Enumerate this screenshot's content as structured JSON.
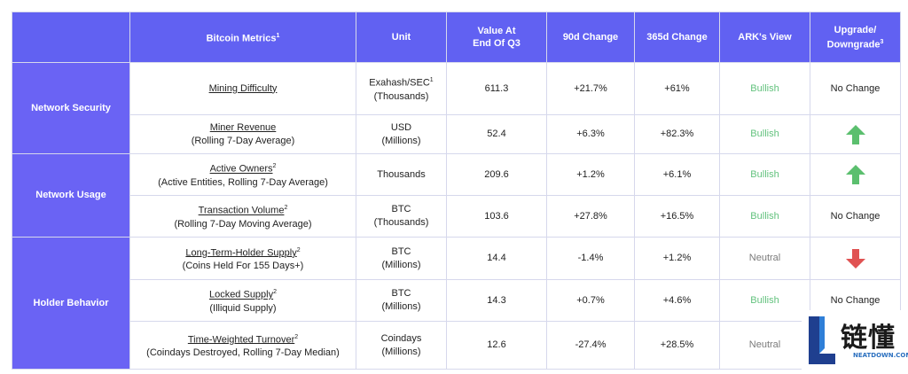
{
  "headers": {
    "group": "",
    "metric": "Bitcoin Metrics",
    "metric_sup": "1",
    "unit": "Unit",
    "value_line1": "Value At",
    "value_line2": "End Of Q3",
    "change90": "90d Change",
    "change365": "365d Change",
    "view": "ARK's View",
    "upgrade_line1": "Upgrade/",
    "upgrade_line2": "Downgrade",
    "upgrade_sup": "3"
  },
  "groups": [
    "Network Security",
    "Network Usage",
    "Holder Behavior"
  ],
  "rows": [
    {
      "name": "Mining Difficulty",
      "name_sup": "",
      "sub": "",
      "unit1": "Exahash/SEC",
      "unit1_sup": "1",
      "unit2": "(Thousands)",
      "value": "611.3",
      "c90": "+21.7%",
      "c365": "+61%",
      "view": "Bullish",
      "change": "No Change",
      "change_icon": ""
    },
    {
      "name": "Miner Revenue",
      "name_sup": "",
      "sub": "(Rolling 7-Day Average)",
      "unit1": "USD",
      "unit1_sup": "",
      "unit2": "(Millions)",
      "value": "52.4",
      "c90": "+6.3%",
      "c365": "+82.3%",
      "view": "Bullish",
      "change": "",
      "change_icon": "arrow-up"
    },
    {
      "name": "Active Owners",
      "name_sup": "2",
      "sub": "(Active Entities, Rolling 7-Day Average)",
      "unit1": "Thousands",
      "unit1_sup": "",
      "unit2": "",
      "value": "209.6",
      "c90": "+1.2%",
      "c365": "+6.1%",
      "view": "Bullish",
      "change": "",
      "change_icon": "arrow-up"
    },
    {
      "name": "Transaction Volume",
      "name_sup": "2",
      "sub": "(Rolling 7-Day Moving Average)",
      "unit1": "BTC",
      "unit1_sup": "",
      "unit2": "(Thousands)",
      "value": "103.6",
      "c90": "+27.8%",
      "c365": "+16.5%",
      "view": "Bullish",
      "change": "No Change",
      "change_icon": ""
    },
    {
      "name": "Long-Term-Holder Supply",
      "name_sup": "2",
      "sub": "(Coins Held For 155 Days+)",
      "unit1": "BTC",
      "unit1_sup": "",
      "unit2": "(Millions)",
      "value": "14.4",
      "c90": "-1.4%",
      "c365": "+1.2%",
      "view": "Neutral",
      "change": "",
      "change_icon": "arrow-down"
    },
    {
      "name": "Locked Supply",
      "name_sup": "2",
      "sub": "(Illiquid Supply)",
      "unit1": "BTC",
      "unit1_sup": "",
      "unit2": "(Millions)",
      "value": "14.3",
      "c90": "+0.7%",
      "c365": "+4.6%",
      "view": "Bullish",
      "change": "No Change",
      "change_icon": ""
    },
    {
      "name": "Time-Weighted Turnover",
      "name_sup": "2",
      "sub": "(Coindays Destroyed, Rolling 7-Day Median)",
      "unit1": "Coindays",
      "unit1_sup": "",
      "unit2": "(Millions)",
      "value": "12.6",
      "c90": "-27.4%",
      "c365": "+28.5%",
      "view": "Neutral",
      "change": "",
      "change_icon": ""
    }
  ],
  "colors": {
    "header_bg": "#6161f2",
    "group_bg": "#6a63f4",
    "bullish": "#62c27d",
    "neutral": "#7a7a7a",
    "arrow_up": "#5bbf6e",
    "arrow_down": "#e05252"
  },
  "watermark": {
    "cn": "链懂",
    "en": "NEATDOWN.COM",
    "logo_icon": "letter-l-logo"
  }
}
